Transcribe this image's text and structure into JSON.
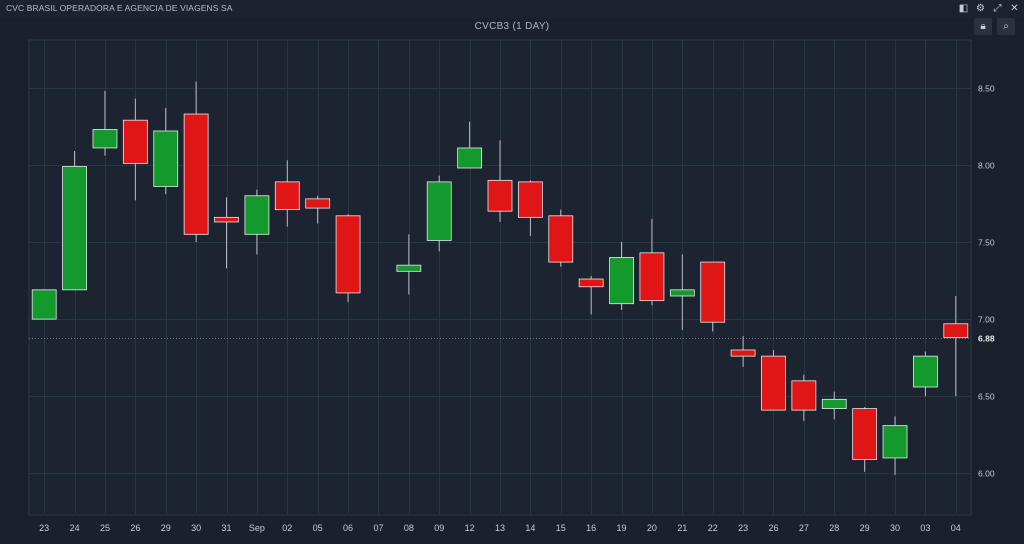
{
  "window": {
    "company_name": "CVC BRASIL OPERADORA E AGENCIA DE VIAGENS SA",
    "icons": [
      "layout-icon",
      "settings-icon",
      "expand-icon",
      "close-icon"
    ]
  },
  "toolbar": {
    "icons": [
      "lock-icon",
      "search-icon"
    ]
  },
  "colors": {
    "background": "#1a212d",
    "plot_background": "#1d2431",
    "grid": "#2b3442",
    "up": "#149a2c",
    "down": "#e01616",
    "wick": "#b8bcc4",
    "text": "#c8ccd4"
  },
  "chart_data": {
    "type": "candlestick",
    "title": "CVCB3 (1 DAY)",
    "last_price_label": "6.88",
    "last_price": 6.88,
    "ylim": [
      5.73,
      8.81
    ],
    "yticks": [
      6.0,
      6.5,
      7.0,
      7.5,
      8.0,
      8.5
    ],
    "ytick_labels": [
      "6.00",
      "6.50",
      "7.00",
      "7.50",
      "8.00",
      "8.50"
    ],
    "grid": true,
    "categories": [
      "23",
      "24",
      "25",
      "26",
      "29",
      "30",
      "31",
      "Sep",
      "02",
      "05",
      "06",
      "07",
      "08",
      "09",
      "12",
      "13",
      "14",
      "15",
      "16",
      "19",
      "20",
      "21",
      "22",
      "23",
      "26",
      "27",
      "28",
      "29",
      "30",
      "03",
      "04"
    ],
    "candles": [
      {
        "o": 7.0,
        "h": 7.19,
        "l": 7.0,
        "c": 7.19
      },
      {
        "o": 7.19,
        "h": 8.09,
        "l": 7.19,
        "c": 7.99
      },
      {
        "o": 8.11,
        "h": 8.48,
        "l": 8.06,
        "c": 8.23
      },
      {
        "o": 8.29,
        "h": 8.43,
        "l": 7.77,
        "c": 8.01
      },
      {
        "o": 7.86,
        "h": 8.37,
        "l": 7.81,
        "c": 8.22
      },
      {
        "o": 8.33,
        "h": 8.54,
        "l": 7.5,
        "c": 7.55
      },
      {
        "o": 7.66,
        "h": 7.79,
        "l": 7.33,
        "c": 7.63
      },
      {
        "o": 7.55,
        "h": 7.84,
        "l": 7.42,
        "c": 7.8
      },
      {
        "o": 7.89,
        "h": 8.03,
        "l": 7.6,
        "c": 7.71
      },
      {
        "o": 7.78,
        "h": 7.8,
        "l": 7.62,
        "c": 7.72
      },
      {
        "o": 7.67,
        "h": 7.68,
        "l": 7.11,
        "c": 7.17
      },
      null,
      {
        "o": 7.31,
        "h": 7.55,
        "l": 7.16,
        "c": 7.35
      },
      {
        "o": 7.51,
        "h": 7.93,
        "l": 7.44,
        "c": 7.89
      },
      {
        "o": 7.98,
        "h": 8.28,
        "l": 7.98,
        "c": 8.11
      },
      {
        "o": 7.9,
        "h": 8.16,
        "l": 7.63,
        "c": 7.7
      },
      {
        "o": 7.89,
        "h": 7.9,
        "l": 7.54,
        "c": 7.66
      },
      {
        "o": 7.67,
        "h": 7.71,
        "l": 7.34,
        "c": 7.37
      },
      {
        "o": 7.26,
        "h": 7.28,
        "l": 7.03,
        "c": 7.21
      },
      {
        "o": 7.1,
        "h": 7.5,
        "l": 7.06,
        "c": 7.4
      },
      {
        "o": 7.43,
        "h": 7.65,
        "l": 7.09,
        "c": 7.12
      },
      {
        "o": 7.15,
        "h": 7.42,
        "l": 6.93,
        "c": 7.19
      },
      {
        "o": 7.37,
        "h": 7.37,
        "l": 6.92,
        "c": 6.98
      },
      {
        "o": 6.8,
        "h": 6.89,
        "l": 6.69,
        "c": 6.76
      },
      {
        "o": 6.76,
        "h": 6.8,
        "l": 6.41,
        "c": 6.41
      },
      {
        "o": 6.6,
        "h": 6.64,
        "l": 6.34,
        "c": 6.41
      },
      {
        "o": 6.42,
        "h": 6.53,
        "l": 6.35,
        "c": 6.48
      },
      {
        "o": 6.42,
        "h": 6.43,
        "l": 6.01,
        "c": 6.09
      },
      {
        "o": 6.1,
        "h": 6.37,
        "l": 5.99,
        "c": 6.31
      },
      {
        "o": 6.56,
        "h": 6.79,
        "l": 6.5,
        "c": 6.76
      },
      {
        "o": 6.97,
        "h": 7.15,
        "l": 6.5,
        "c": 6.88
      }
    ]
  }
}
